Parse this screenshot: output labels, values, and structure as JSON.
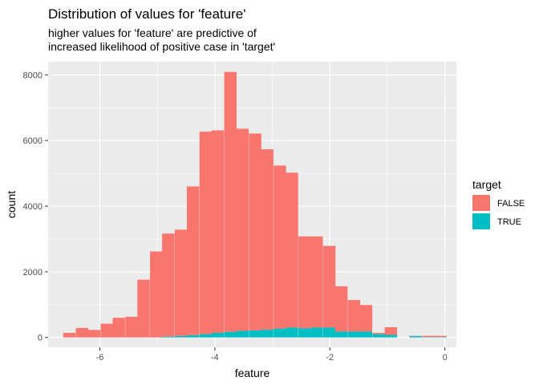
{
  "chart_data": {
    "type": "bar",
    "stacked": true,
    "title": "Distribution of values for 'feature'",
    "subtitle_lines": [
      "higher values for 'feature' are predictive of",
      "increased likelihood of positive case in 'target'"
    ],
    "xlabel": "feature",
    "ylabel": "count",
    "xlim": [
      -6.9,
      0.2
    ],
    "ylim": [
      -300,
      8400
    ],
    "x_ticks": [
      -6,
      -4,
      -2,
      0
    ],
    "x_tick_labels": [
      "-6",
      "-4",
      "-2",
      "0"
    ],
    "y_ticks": [
      0,
      2000,
      4000,
      6000,
      8000
    ],
    "y_tick_labels": [
      "0",
      "2000",
      "4000",
      "6000",
      "8000"
    ],
    "bin_width": 0.215,
    "x": [
      -6.53,
      -6.31,
      -6.1,
      -5.88,
      -5.67,
      -5.45,
      -5.24,
      -5.02,
      -4.81,
      -4.59,
      -4.38,
      -4.16,
      -3.95,
      -3.73,
      -3.52,
      -3.3,
      -3.09,
      -2.87,
      -2.66,
      -2.44,
      -2.23,
      -2.01,
      -1.8,
      -1.58,
      -1.37,
      -1.15,
      -0.94,
      -0.72,
      -0.51,
      -0.29,
      -0.08
    ],
    "grid": true,
    "legend": {
      "title": "target",
      "position": "right"
    },
    "series": [
      {
        "name": "TRUE",
        "color": "#00BFC4",
        "values": [
          0,
          0,
          0,
          0,
          0,
          0,
          0,
          0,
          25,
          45,
          70,
          100,
          140,
          170,
          200,
          215,
          235,
          270,
          300,
          280,
          300,
          300,
          180,
          180,
          180,
          100,
          80,
          0,
          40,
          10,
          10
        ]
      },
      {
        "name": "FALSE",
        "color": "#F8766D",
        "values": [
          140,
          290,
          230,
          420,
          600,
          630,
          1760,
          2620,
          3140,
          3240,
          4530,
          6170,
          6170,
          7920,
          6160,
          6000,
          5500,
          4970,
          4720,
          2800,
          2780,
          2490,
          1380,
          960,
          810,
          40,
          230,
          0,
          10,
          40,
          40
        ]
      }
    ],
    "legend_order": [
      "FALSE",
      "TRUE"
    ]
  }
}
